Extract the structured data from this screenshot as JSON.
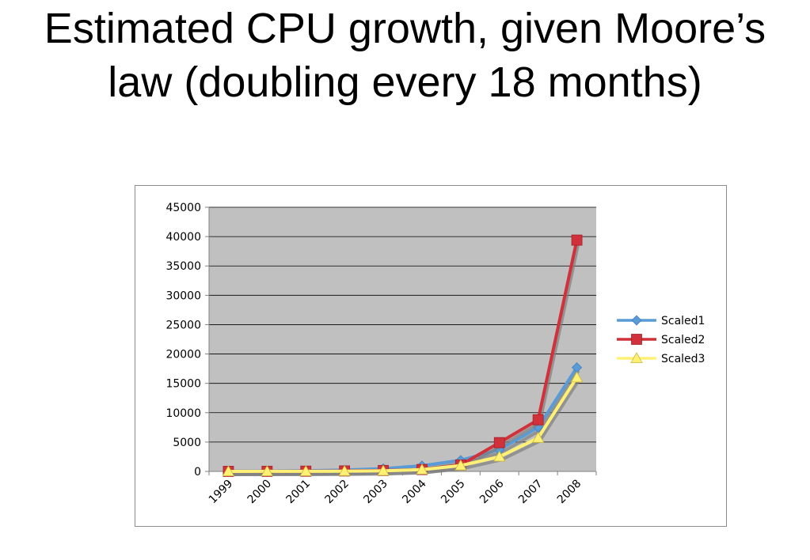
{
  "slide": {
    "title": "Estimated CPU growth, given Moore’s law (doubling every 18 months)"
  },
  "chart_data": {
    "type": "line",
    "title": "",
    "xlabel": "",
    "ylabel": "",
    "ylim": [
      0,
      45000
    ],
    "ytick_step": 5000,
    "yticks": [
      "0",
      "5000",
      "10000",
      "15000",
      "20000",
      "25000",
      "30000",
      "35000",
      "40000",
      "45000"
    ],
    "categories": [
      "1999",
      "2000",
      "2001",
      "2002",
      "2003",
      "2004",
      "2005",
      "2006",
      "2007",
      "2008"
    ],
    "grid": true,
    "legend_position": "right",
    "plot_background": "#c0c0c0",
    "series": [
      {
        "name": "Scaled1",
        "color": "#5b9bd5",
        "marker": "diamond",
        "values": [
          30,
          60,
          120,
          240,
          480,
          960,
          1900,
          3700,
          7500,
          17700
        ]
      },
      {
        "name": "Scaled2",
        "color": "#d0313a",
        "marker": "square",
        "values": [
          10,
          20,
          40,
          80,
          160,
          320,
          1100,
          4900,
          8800,
          39400
        ]
      },
      {
        "name": "Scaled3",
        "color": "#fff176",
        "marker": "triangle",
        "values": [
          5,
          10,
          20,
          40,
          100,
          300,
          1000,
          2500,
          5700,
          16000
        ]
      }
    ]
  }
}
